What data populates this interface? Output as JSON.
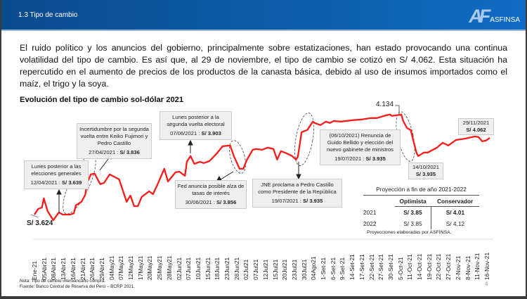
{
  "header": {
    "title": "1.3 Tipo de cambio",
    "logo_mark": "AF",
    "logo_name": "ASFINSA"
  },
  "paragraph": "El ruido político y los anuncios del gobierno, principalmente sobre estatizaciones, han estado provocando una continua volatilidad del tipo de cambio. Es así que, al 29 de noviembre, el tipo de cambio se cotizó en S/ 4.062. Esta situación ha repercutido en el aumento de precios de los productos de la canasta básica, debido al uso de insumos importados como el maíz, el trigo y la soya.",
  "chart_data": {
    "type": "line",
    "title": "Evolución del tipo de cambio sol-dólar 2021",
    "series_color": "#ff1a1a",
    "x_unit": "day of year 2021",
    "xlim": [
      91,
      333
    ],
    "ylim": [
      3.534,
      4.217
    ],
    "points": [
      [
        91,
        3.624
      ],
      [
        93,
        3.653
      ],
      [
        95,
        3.66
      ],
      [
        96,
        3.707
      ],
      [
        98,
        3.642
      ],
      [
        101,
        3.595
      ],
      [
        104,
        3.635
      ],
      [
        106,
        3.624
      ],
      [
        110,
        3.624
      ],
      [
        112,
        3.631
      ],
      [
        113,
        3.671
      ],
      [
        116,
        3.689
      ],
      [
        118,
        3.725
      ],
      [
        119,
        3.786
      ],
      [
        121,
        3.829
      ],
      [
        123,
        3.833
      ],
      [
        125,
        3.797
      ],
      [
        126,
        3.779
      ],
      [
        128,
        3.786
      ],
      [
        131,
        3.829
      ],
      [
        136,
        3.804
      ],
      [
        140,
        3.689
      ],
      [
        142,
        3.721
      ],
      [
        144,
        3.667
      ],
      [
        146,
        3.667
      ],
      [
        148,
        3.714
      ],
      [
        152,
        3.743
      ],
      [
        154,
        3.728
      ],
      [
        156,
        3.768
      ],
      [
        160,
        3.858
      ],
      [
        162,
        3.793
      ],
      [
        166,
        3.84
      ],
      [
        168,
        3.843
      ],
      [
        171,
        3.822
      ],
      [
        172,
        3.894
      ],
      [
        174,
        3.923
      ],
      [
        176,
        3.883
      ],
      [
        179,
        3.894
      ],
      [
        181,
        3.887
      ],
      [
        184,
        3.897
      ],
      [
        188,
        3.937
      ],
      [
        191,
        3.973
      ],
      [
        195,
        3.977
      ],
      [
        197,
        3.923
      ],
      [
        200,
        3.858
      ],
      [
        202,
        3.858
      ],
      [
        204,
        3.905
      ],
      [
        207,
        3.955
      ],
      [
        209,
        3.959
      ],
      [
        212,
        3.955
      ],
      [
        215,
        3.966
      ],
      [
        218,
        3.959
      ],
      [
        220,
        3.905
      ],
      [
        222,
        3.948
      ],
      [
        225,
        3.937
      ],
      [
        228,
        3.923
      ],
      [
        230,
        3.905
      ],
      [
        231,
        3.919
      ],
      [
        233,
        4.045
      ],
      [
        236,
        4.056
      ],
      [
        239,
        4.099
      ],
      [
        240,
        4.092
      ],
      [
        243,
        4.081
      ],
      [
        246,
        4.099
      ],
      [
        248,
        4.092
      ],
      [
        250,
        4.102
      ],
      [
        254,
        4.099
      ],
      [
        260,
        4.106
      ],
      [
        265,
        4.11
      ],
      [
        270,
        4.117
      ],
      [
        273,
        4.117
      ],
      [
        278,
        4.131
      ],
      [
        280,
        4.135
      ],
      [
        281,
        4.128
      ],
      [
        286,
        4.135
      ],
      [
        287,
        4.102
      ],
      [
        289,
        4.066
      ],
      [
        291,
        4.056
      ],
      [
        294,
        3.941
      ],
      [
        295,
        3.923
      ],
      [
        298,
        3.941
      ],
      [
        300,
        3.941
      ],
      [
        305,
        3.966
      ],
      [
        308,
        3.991
      ],
      [
        311,
        3.977
      ],
      [
        315,
        4.005
      ],
      [
        320,
        4.012
      ],
      [
        325,
        4.023
      ],
      [
        327,
        4.02
      ],
      [
        329,
        3.998
      ],
      [
        331,
        4.002
      ],
      [
        333,
        4.016
      ]
    ],
    "x_tick_labels": [
      "Ene-21",
      "05Abr21",
      "08Abr21",
      "13Abr21",
      "16Abr21",
      "21Abr21",
      "26Abr21",
      "29Abr21",
      "04May21",
      "07May21",
      "12May21",
      "17May21",
      "20May21",
      "25May21",
      "28May21",
      "02Jun21",
      "07Jun21",
      "10Jun21",
      "15Jun21",
      "18Jun21",
      "23Jun21",
      "28Jun21",
      "02Jul21",
      "07Jul21",
      "12Jul21",
      "15Jul21",
      "20Jul21",
      "23Jul21",
      "30Jul21",
      "04Ago21",
      "1-Set-21",
      "6-Set-21",
      "9-Set-21",
      "14-Set-21",
      "17-Set-21",
      "22-Set-21",
      "27-Set-21",
      "30-Set-21",
      "5-Oct-21",
      "11-Oct-21",
      "14-Oct-21",
      "19-Oct-21",
      "22-Oct-21",
      "27-Oct-21",
      "2-Nov-21",
      "8-Nov-21",
      "11-Nov-21",
      "16-Nov-21"
    ],
    "start_label": "S/ 3.624",
    "peak_label": "4.134",
    "annotations": [
      {
        "text": "Lunes posterior a las elecciones generales",
        "date": "12/04/2021 :",
        "value": "S/ 3.639"
      },
      {
        "text": "Incertidumbre por la segunda vuelta entre Keiko Fujimori y Pedro Castillo",
        "date": "27/04/2021 :",
        "value": "S/ 3.836"
      },
      {
        "text": "Lunes posterior a la segunda vuelta electoral",
        "date": "07/06/2021 :",
        "value": "S/ 3.903"
      },
      {
        "text": "Fed anuncia posible alza de tasas de interés",
        "date": "30/06/2021 :",
        "value": "S/ 3.856"
      },
      {
        "text": "JNE proclama a Pedro Castillo como Presidente de la República",
        "date": "19/07/2021 :",
        "value": "S/ 3.935"
      },
      {
        "text": "(06/10/2021) Renuncia de Guido Bellido y elección del nuevo gabinete de ministros",
        "date": "19/07/2021 :",
        "value": "S/ 3.935"
      },
      {
        "date": "14/10/2021",
        "value": "S/ 3.935"
      },
      {
        "date": "29/11/2021",
        "value": "S/ 4.062"
      }
    ]
  },
  "projection": {
    "title": "Proyección a fin de año 2021-2022",
    "cols": [
      "Optimista",
      "Conservador"
    ],
    "rows": [
      {
        "year": "2021",
        "opt": "S/ 3.85",
        "cons": "S/ 4.01"
      },
      {
        "year": "2022",
        "opt": "S/ 3.85",
        "cons": "S/ 4.12"
      }
    ],
    "note": "Proyecciones elaboradas por ASFINSA."
  },
  "footer": {
    "note": "Nota: Tipo de cambio interbancario compra.",
    "source": "Fuente: Banco Central de Reserva del Perú – BCRP 2021.",
    "page": "4"
  }
}
